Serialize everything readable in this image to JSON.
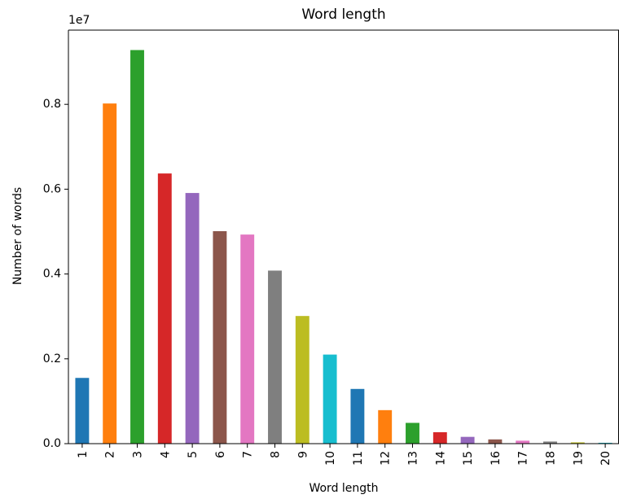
{
  "chart_data": {
    "type": "bar",
    "title": "Word length",
    "xlabel": "Word length",
    "ylabel": "Number of words",
    "offset_label": "1e7",
    "categories": [
      "1",
      "2",
      "3",
      "4",
      "5",
      "6",
      "7",
      "8",
      "9",
      "10",
      "11",
      "12",
      "13",
      "14",
      "15",
      "16",
      "17",
      "18",
      "19",
      "20"
    ],
    "values": [
      1550000,
      8020000,
      9280000,
      6370000,
      5910000,
      5010000,
      4930000,
      4080000,
      3010000,
      2100000,
      1290000,
      790000,
      490000,
      270000,
      160000,
      100000,
      70000,
      50000,
      30000,
      20000
    ],
    "colors": [
      "#1f77b4",
      "#ff7f0e",
      "#2ca02c",
      "#d62728",
      "#9467bd",
      "#8c564b",
      "#e377c2",
      "#7f7f7f",
      "#bcbd22",
      "#17becf",
      "#1f77b4",
      "#ff7f0e",
      "#2ca02c",
      "#d62728",
      "#9467bd",
      "#8c564b",
      "#e377c2",
      "#7f7f7f",
      "#bcbd22",
      "#17becf"
    ],
    "yticks": [
      0.0,
      0.2,
      0.4,
      0.6,
      0.8
    ],
    "ytick_labels": [
      "0.0",
      "0.2",
      "0.4",
      "0.6",
      "0.8"
    ],
    "ylim": [
      0,
      9750000
    ],
    "grid": false,
    "legend": "none"
  }
}
